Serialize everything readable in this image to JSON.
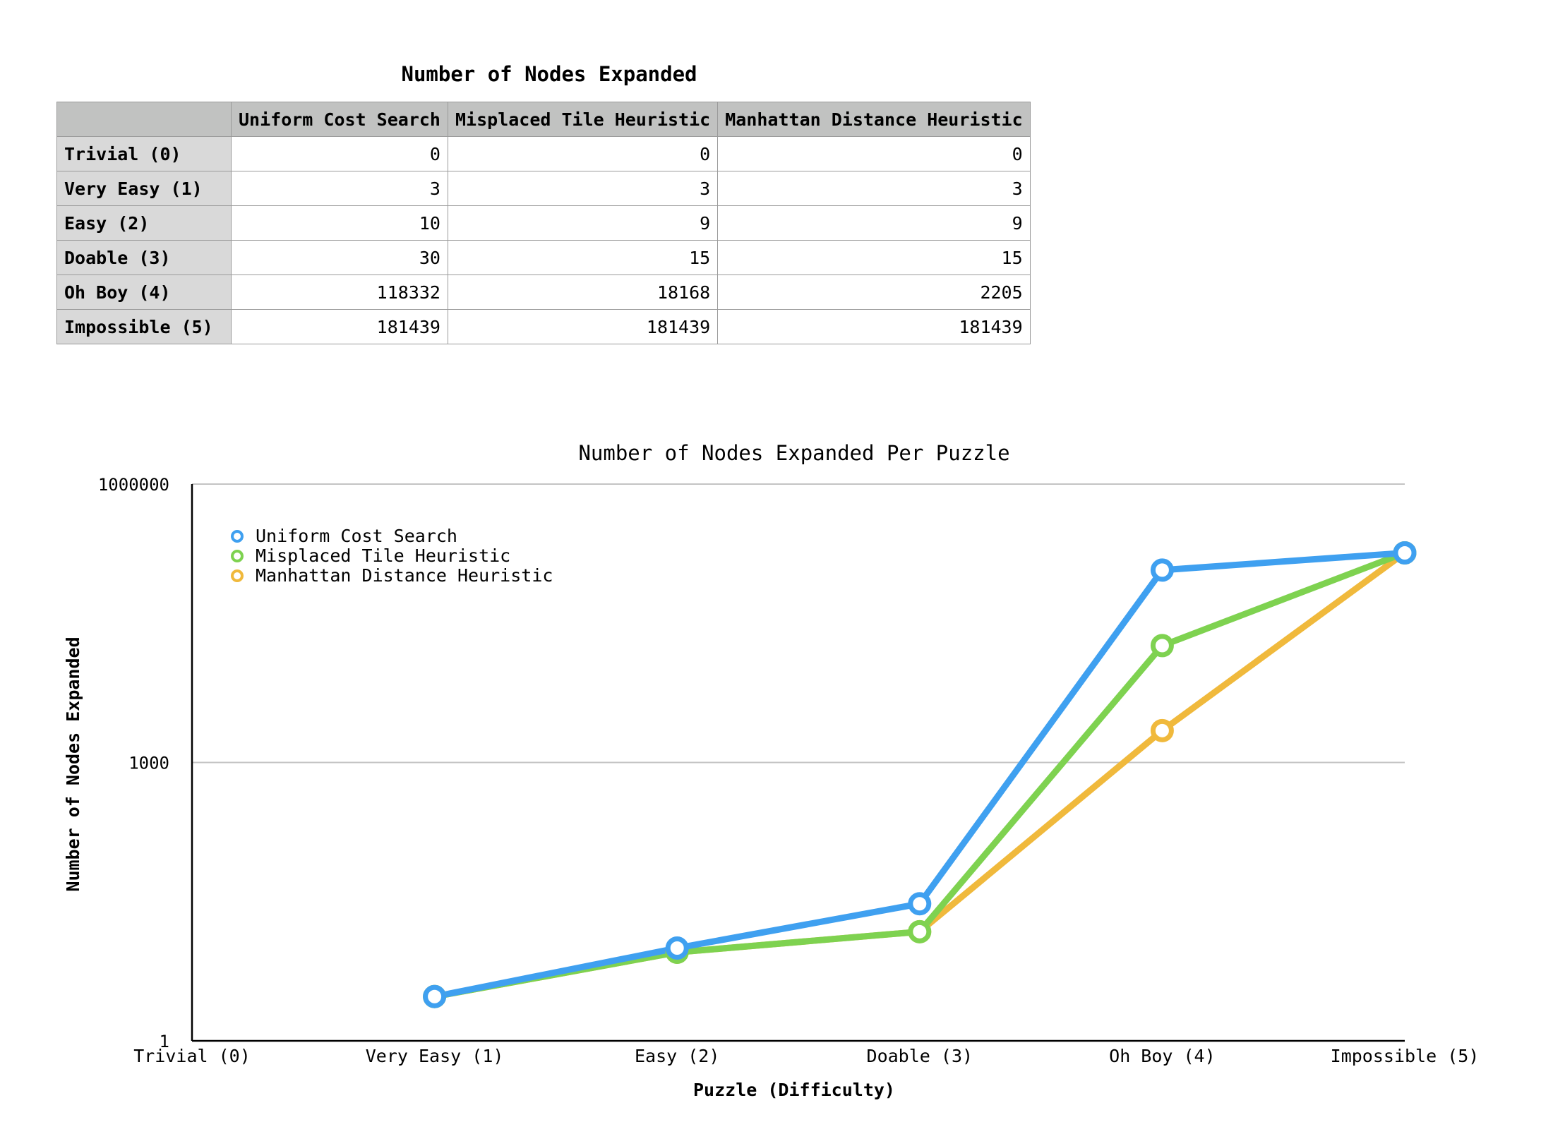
{
  "table": {
    "title": "Number of Nodes Expanded",
    "corner": "",
    "columns": [
      "Uniform Cost Search",
      "Misplaced Tile Heuristic",
      "Manhattan Distance Heuristic"
    ],
    "rows": [
      {
        "label": "Trivial (0)",
        "values": [
          "0",
          "0",
          "0"
        ]
      },
      {
        "label": "Very Easy (1)",
        "values": [
          "3",
          "3",
          "3"
        ]
      },
      {
        "label": "Easy (2)",
        "values": [
          "10",
          "9",
          "9"
        ]
      },
      {
        "label": "Doable (3)",
        "values": [
          "30",
          "15",
          "15"
        ]
      },
      {
        "label": "Oh Boy (4)",
        "values": [
          "118332",
          "18168",
          "2205"
        ]
      },
      {
        "label": "Impossible (5)",
        "values": [
          "181439",
          "181439",
          "181439"
        ]
      }
    ]
  },
  "chart_data": {
    "type": "line",
    "title": "Number of Nodes Expanded Per Puzzle",
    "xlabel": "Puzzle (Difficulty)",
    "ylabel": "Number of Nodes Expanded",
    "categories": [
      "Trivial (0)",
      "Very Easy (1)",
      "Easy (2)",
      "Doable (3)",
      "Oh Boy (4)",
      "Impossible (5)"
    ],
    "y_scale": "log",
    "ylim": [
      1,
      1000000
    ],
    "y_ticks": [
      1,
      1000,
      1000000
    ],
    "y_tick_labels": [
      "1",
      "1000",
      "1000000"
    ],
    "grid": true,
    "legend_position": "top-left",
    "series": [
      {
        "name": "Uniform Cost Search",
        "color": "#3fa0f0",
        "values": [
          0,
          3,
          10,
          30,
          118332,
          181439
        ]
      },
      {
        "name": "Misplaced Tile Heuristic",
        "color": "#7ed250",
        "values": [
          0,
          3,
          9,
          15,
          18168,
          181439
        ]
      },
      {
        "name": "Manhattan Distance Heuristic",
        "color": "#f0b93c",
        "values": [
          0,
          3,
          9,
          15,
          2205,
          181439
        ]
      }
    ]
  }
}
